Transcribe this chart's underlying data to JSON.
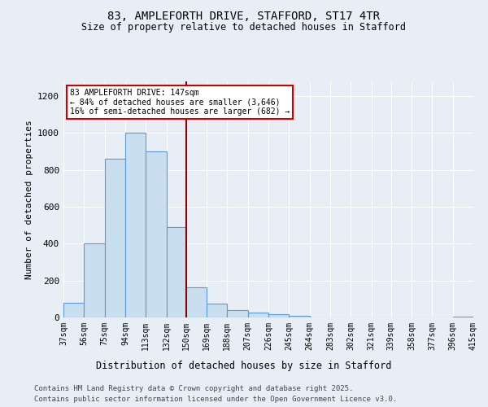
{
  "title": "83, AMPLEFORTH DRIVE, STAFFORD, ST17 4TR",
  "subtitle": "Size of property relative to detached houses in Stafford",
  "xlabel": "Distribution of detached houses by size in Stafford",
  "ylabel": "Number of detached properties",
  "footer1": "Contains HM Land Registry data © Crown copyright and database right 2025.",
  "footer2": "Contains public sector information licensed under the Open Government Licence v3.0.",
  "annotation_line1": "83 AMPLEFORTH DRIVE: 147sqm",
  "annotation_line2": "← 84% of detached houses are smaller (3,646)",
  "annotation_line3": "16% of semi-detached houses are larger (682) →",
  "bar_color": "#c9dff0",
  "bar_edge_color": "#5b9bd5",
  "vline_color": "#8b0000",
  "vline_x": 150,
  "bin_edges": [
    37,
    56,
    75,
    94,
    113,
    132,
    150,
    169,
    188,
    207,
    226,
    245,
    264,
    283,
    302,
    321,
    339,
    358,
    377,
    396,
    415
  ],
  "bin_labels": [
    "37sqm",
    "56sqm",
    "75sqm",
    "94sqm",
    "113sqm",
    "132sqm",
    "150sqm",
    "169sqm",
    "188sqm",
    "207sqm",
    "226sqm",
    "245sqm",
    "264sqm",
    "283sqm",
    "302sqm",
    "321sqm",
    "339sqm",
    "358sqm",
    "377sqm",
    "396sqm",
    "415sqm"
  ],
  "bar_heights": [
    80,
    400,
    860,
    1000,
    900,
    490,
    165,
    75,
    38,
    25,
    18,
    10,
    2,
    0,
    0,
    2,
    0,
    0,
    0,
    5
  ],
  "ylim": [
    0,
    1280
  ],
  "yticks": [
    0,
    200,
    400,
    600,
    800,
    1000,
    1200
  ],
  "background_color": "#e8eef5",
  "plot_bg_color": "#e8eef5",
  "grid_color": "#ffffff"
}
